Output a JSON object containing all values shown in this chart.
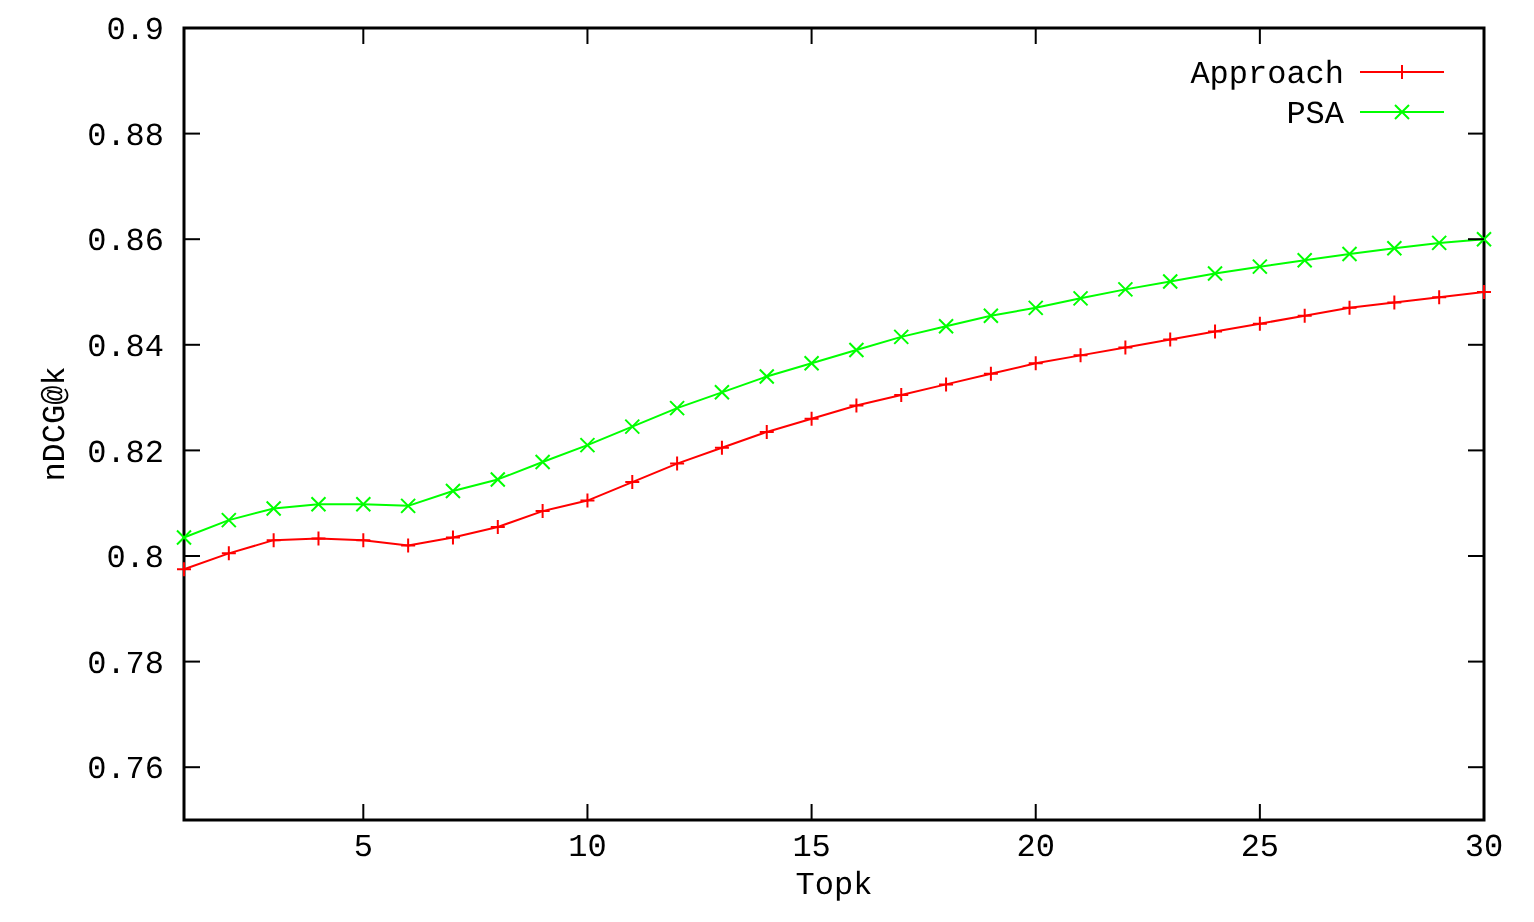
{
  "chart_data": {
    "type": "line",
    "xlabel": "Topk",
    "ylabel": "nDCG@k",
    "x": [
      1,
      2,
      3,
      4,
      5,
      6,
      7,
      8,
      9,
      10,
      11,
      12,
      13,
      14,
      15,
      16,
      17,
      18,
      19,
      20,
      21,
      22,
      23,
      24,
      25,
      26,
      27,
      28,
      29,
      30
    ],
    "series": [
      {
        "name": "Approach",
        "color": "#ff0000",
        "values": [
          0.7975,
          0.8005,
          0.803,
          0.8033,
          0.803,
          0.802,
          0.8035,
          0.8055,
          0.8085,
          0.8105,
          0.814,
          0.8175,
          0.8205,
          0.8235,
          0.826,
          0.8285,
          0.8305,
          0.8325,
          0.8345,
          0.8365,
          0.838,
          0.8395,
          0.841,
          0.8425,
          0.844,
          0.8455,
          0.847,
          0.848,
          0.849,
          0.85
        ]
      },
      {
        "name": "PSA",
        "color": "#00ff00",
        "values": [
          0.8035,
          0.8068,
          0.809,
          0.8098,
          0.8098,
          0.8095,
          0.8123,
          0.8145,
          0.8178,
          0.821,
          0.8245,
          0.828,
          0.831,
          0.834,
          0.8365,
          0.839,
          0.8415,
          0.8435,
          0.8455,
          0.847,
          0.8488,
          0.8505,
          0.852,
          0.8535,
          0.8548,
          0.856,
          0.8572,
          0.8583,
          0.8593,
          0.86
        ]
      }
    ],
    "xlim": [
      1,
      30
    ],
    "xticks": [
      5,
      10,
      15,
      20,
      25,
      30
    ],
    "ylim": [
      0.75,
      0.9
    ],
    "yticks": [
      {
        "value": 0.76,
        "label": "0.76"
      },
      {
        "value": 0.78,
        "label": "0.78"
      },
      {
        "value": 0.8,
        "label": "0.8"
      },
      {
        "value": 0.82,
        "label": "0.82"
      },
      {
        "value": 0.84,
        "label": "0.84"
      },
      {
        "value": 0.86,
        "label": "0.86"
      },
      {
        "value": 0.88,
        "label": "0.88"
      },
      {
        "value": 0.9,
        "label": "0.9"
      }
    ],
    "grid": false,
    "legend": "top right",
    "marker": "cross",
    "line_style": "solid"
  }
}
